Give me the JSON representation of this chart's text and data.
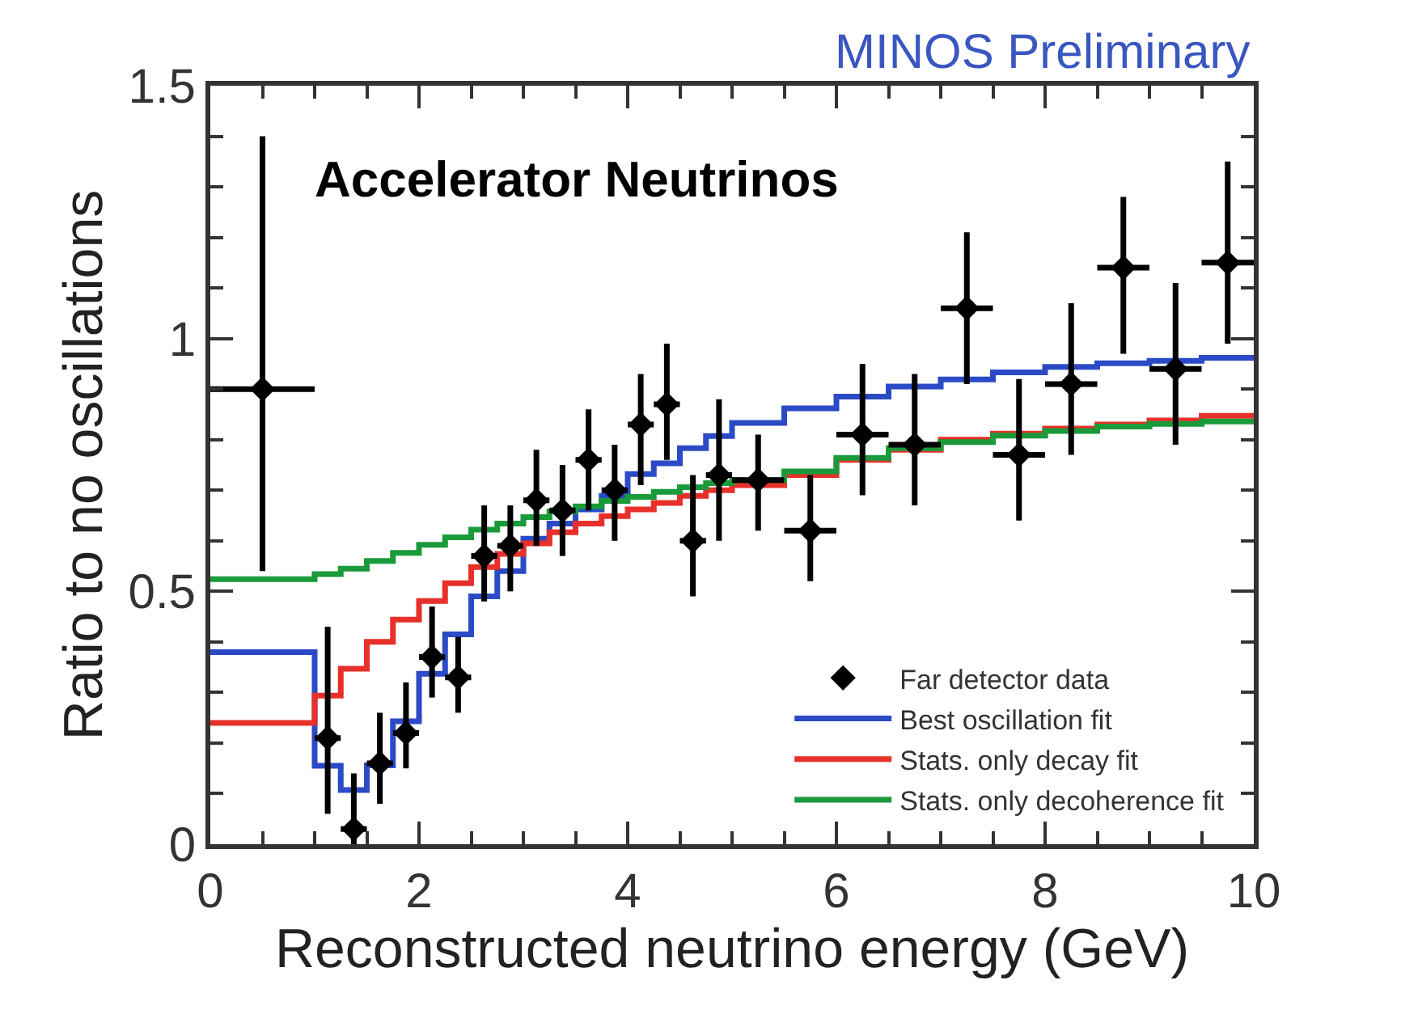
{
  "chart_data": {
    "type": "scatter",
    "title": "Accelerator Neutrinos",
    "xlabel": "Reconstructed neutrino energy (GeV)",
    "ylabel": "Ratio to no oscillations",
    "annotations": [
      "MINOS Preliminary"
    ],
    "xlim": [
      0,
      10
    ],
    "xticks": [
      0,
      2,
      4,
      6,
      8,
      10
    ],
    "ylim": [
      0,
      1.5
    ],
    "yticks": [
      0,
      0.5,
      1,
      1.5
    ],
    "legend": "bottom right",
    "series": [
      {
        "name": "Far detector data",
        "marker": "diamond",
        "color": "#000000",
        "x": [
          0.5,
          1.125,
          1.375,
          1.625,
          1.875,
          2.125,
          2.375,
          2.625,
          2.875,
          3.125,
          3.375,
          3.625,
          3.875,
          4.125,
          4.375,
          4.625,
          4.875,
          5.25,
          5.75,
          6.25,
          6.75,
          7.25,
          7.75,
          8.25,
          8.75,
          9.25,
          9.75
        ],
        "values": [
          0.9,
          0.21,
          0.03,
          0.16,
          0.22,
          0.37,
          0.33,
          0.57,
          0.59,
          0.68,
          0.66,
          0.76,
          0.7,
          0.83,
          0.87,
          0.6,
          0.73,
          0.72,
          0.62,
          0.81,
          0.79,
          1.06,
          0.77,
          0.91,
          1.14,
          0.94,
          1.15
        ],
        "errors": [
          [
            0.54,
            1.4
          ],
          [
            0.06,
            0.43
          ],
          [
            0.0,
            0.14
          ],
          [
            0.08,
            0.26
          ],
          [
            0.15,
            0.32
          ],
          [
            0.29,
            0.47
          ],
          [
            0.26,
            0.41
          ],
          [
            0.48,
            0.67
          ],
          [
            0.5,
            0.67
          ],
          [
            0.59,
            0.78
          ],
          [
            0.57,
            0.75
          ],
          [
            0.66,
            0.86
          ],
          [
            0.6,
            0.79
          ],
          [
            0.71,
            0.93
          ],
          [
            0.76,
            0.99
          ],
          [
            0.49,
            0.73
          ],
          [
            0.6,
            0.88
          ],
          [
            0.62,
            0.81
          ],
          [
            0.52,
            0.73
          ],
          [
            0.69,
            0.95
          ],
          [
            0.67,
            0.93
          ],
          [
            0.91,
            1.21
          ],
          [
            0.64,
            0.92
          ],
          [
            0.77,
            1.07
          ],
          [
            0.97,
            1.28
          ],
          [
            0.79,
            1.11
          ],
          [
            0.99,
            1.35
          ]
        ],
        "xerrors": [
          0.5,
          0.125,
          0.125,
          0.125,
          0.125,
          0.125,
          0.125,
          0.125,
          0.125,
          0.125,
          0.125,
          0.125,
          0.125,
          0.125,
          0.125,
          0.125,
          0.125,
          0.25,
          0.25,
          0.25,
          0.25,
          0.25,
          0.25,
          0.25,
          0.25,
          0.25,
          0.25
        ]
      },
      {
        "name": "Best oscillation fit",
        "type": "step",
        "color": "#2b4bc6",
        "x": [
          0,
          1,
          1.25,
          1.5,
          1.75,
          2,
          2.25,
          2.5,
          2.75,
          3,
          3.25,
          3.5,
          3.75,
          4,
          4.25,
          4.5,
          4.75,
          5,
          5.5,
          6,
          6.5,
          7,
          7.5,
          8,
          8.5,
          9,
          9.5,
          10
        ],
        "values": [
          0.38,
          0.155,
          0.107,
          0.156,
          0.243,
          0.337,
          0.415,
          0.49,
          0.54,
          0.604,
          0.634,
          0.662,
          0.689,
          0.732,
          0.753,
          0.783,
          0.807,
          0.833,
          0.862,
          0.885,
          0.905,
          0.919,
          0.933,
          0.944,
          0.951,
          0.956,
          0.962,
          0.962
        ]
      },
      {
        "name": "Stats. only decay fit",
        "type": "step",
        "color": "#e8302a",
        "x": [
          0,
          1,
          1.25,
          1.5,
          1.75,
          2,
          2.25,
          2.5,
          2.75,
          3,
          3.25,
          3.5,
          3.75,
          4,
          4.25,
          4.5,
          4.75,
          5,
          5.5,
          6,
          6.5,
          7,
          7.5,
          8,
          8.5,
          9,
          9.5,
          10
        ],
        "values": [
          0.24,
          0.294,
          0.347,
          0.4,
          0.444,
          0.481,
          0.516,
          0.548,
          0.574,
          0.595,
          0.617,
          0.634,
          0.649,
          0.662,
          0.675,
          0.689,
          0.7,
          0.71,
          0.73,
          0.76,
          0.78,
          0.8,
          0.812,
          0.822,
          0.83,
          0.838,
          0.847,
          0.847
        ]
      },
      {
        "name": "Stats. only decoherence fit",
        "type": "step",
        "color": "#1a9a3a",
        "x": [
          0,
          1,
          1.25,
          1.5,
          1.75,
          2,
          2.25,
          2.5,
          2.75,
          3,
          3.25,
          3.5,
          3.75,
          4,
          4.25,
          4.5,
          4.75,
          5,
          5.5,
          6,
          6.5,
          7,
          7.5,
          8,
          8.5,
          9,
          9.5,
          10
        ],
        "values": [
          0.524,
          0.534,
          0.545,
          0.56,
          0.576,
          0.592,
          0.607,
          0.622,
          0.634,
          0.647,
          0.658,
          0.668,
          0.679,
          0.687,
          0.697,
          0.706,
          0.714,
          0.72,
          0.737,
          0.764,
          0.783,
          0.795,
          0.808,
          0.817,
          0.826,
          0.831,
          0.836,
          0.836
        ]
      }
    ]
  }
}
